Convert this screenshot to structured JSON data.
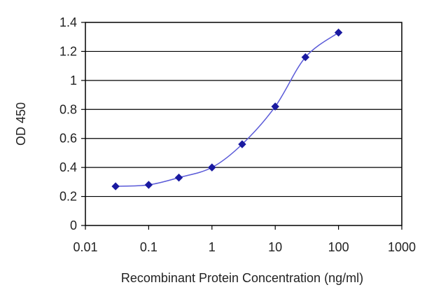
{
  "chart_data": {
    "type": "line",
    "xlabel": "Recombinant Protein Concentration (ng/ml)",
    "ylabel": "OD 450",
    "xscale": "log",
    "xlim": [
      0.01,
      1000
    ],
    "ylim": [
      0,
      1.4
    ],
    "x_ticks": [
      "0.01",
      "0.1",
      "1",
      "10",
      "100",
      "1000"
    ],
    "y_ticks": [
      "0",
      "0.2",
      "0.4",
      "0.6",
      "0.8",
      "1",
      "1.2",
      "1.4"
    ],
    "grid": "horizontal",
    "legend": "none",
    "series": [
      {
        "x": [
          0.03,
          0.1,
          0.3,
          1,
          3,
          10,
          30,
          100
        ],
        "y": [
          0.27,
          0.28,
          0.33,
          0.4,
          0.56,
          0.82,
          1.16,
          1.33
        ],
        "color": "#1a1aa0"
      }
    ]
  }
}
